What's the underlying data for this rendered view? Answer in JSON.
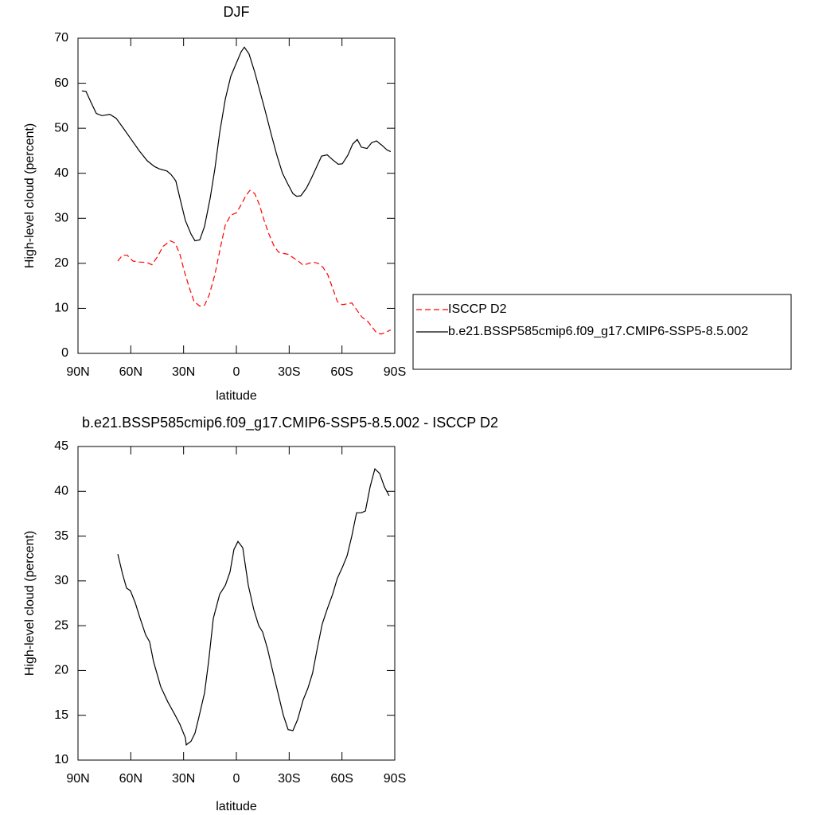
{
  "chart_data": [
    {
      "type": "line",
      "title": "DJF",
      "xlabel": "latitude",
      "ylabel": "High-level cloud (percent)",
      "xlim": [
        90,
        -90
      ],
      "xticks": [
        {
          "value": 90,
          "label": "90N"
        },
        {
          "value": 60,
          "label": "60N"
        },
        {
          "value": 30,
          "label": "30N"
        },
        0,
        {
          "value": -30,
          "label": "30S"
        },
        {
          "value": -60,
          "label": "60S"
        },
        {
          "value": -90,
          "label": "90S"
        }
      ],
      "ylim": [
        0,
        70
      ],
      "yticks": [
        0,
        10,
        20,
        30,
        40,
        50,
        60,
        70
      ],
      "legend": "right",
      "series": [
        {
          "name": "ISCCP D2",
          "color": "#ff0000",
          "dash": true,
          "x": [
            67.4,
            64.7,
            62,
            58.8,
            55.2,
            51.1,
            48,
            44.8,
            41.6,
            37.5,
            34.8,
            32.1,
            29.4,
            26.7,
            24,
            20.8,
            18.1,
            15.4,
            12.2,
            9.1,
            6.3,
            3.2,
            0,
            -2.7,
            -5.4,
            -7.7,
            -10.4,
            -13.1,
            -15.8,
            -18.5,
            -21.2,
            -23.9,
            -26.7,
            -29.4,
            -32.1,
            -35.2,
            -37.9,
            -40.6,
            -43.3,
            -46.5,
            -49.2,
            -51.9,
            -54.7,
            -57.4,
            -60.2,
            -62.9,
            -65.6,
            -68.7,
            -71.4,
            -74.2,
            -76.9,
            -79.6,
            -82.3,
            -85,
            -87.7
          ],
          "values": [
            20.5,
            21.8,
            21.8,
            20.5,
            20.3,
            20.2,
            19.7,
            21.5,
            23.8,
            25,
            24.5,
            22,
            18,
            14.5,
            11.5,
            10.5,
            10.7,
            13,
            17.5,
            23.5,
            28.5,
            30.7,
            31.2,
            33,
            35,
            36.2,
            35.5,
            33,
            29.5,
            26.5,
            24,
            22.5,
            22.2,
            22,
            21.3,
            20.5,
            19.6,
            19.9,
            20.3,
            20,
            19.1,
            17.5,
            14.5,
            11.5,
            10.8,
            11,
            11.2,
            9.5,
            8,
            7.3,
            6,
            4.6,
            4.3,
            4.7,
            5.2
          ]
        },
        {
          "name": "b.e21.BSSP585cmip6.f09_g17.CMIP6-SSP5-8.5.002",
          "color": "#000000",
          "dash": false,
          "x": [
            87.8,
            85.5,
            82.3,
            79.6,
            76.4,
            71.9,
            68.3,
            64.2,
            59.7,
            55.2,
            50.7,
            46.6,
            43.9,
            39.4,
            37.1,
            34.4,
            32.1,
            29,
            25.8,
            23.5,
            20.8,
            18.1,
            14.9,
            12.2,
            9.5,
            6.3,
            3.2,
            0,
            -2.7,
            -4.5,
            -7.2,
            -10.4,
            -13.5,
            -16.3,
            -19.9,
            -23,
            -26.2,
            -29.4,
            -32.1,
            -34.3,
            -36.6,
            -39.8,
            -42.5,
            -45.7,
            -48.4,
            -51.6,
            -54.7,
            -57.9,
            -60.2,
            -63.3,
            -66.1,
            -68.7,
            -71,
            -74.2,
            -76.9,
            -79.6,
            -82.7,
            -85.5,
            -87.7
          ],
          "values": [
            58.3,
            58.2,
            55.5,
            53.3,
            52.8,
            53.1,
            52.2,
            50,
            47.5,
            45,
            42.8,
            41.5,
            41,
            40.5,
            39.7,
            38.3,
            34.5,
            29.5,
            26.5,
            25,
            25.2,
            28.2,
            34.5,
            41,
            49,
            56.5,
            61.5,
            64.5,
            67,
            68,
            66.5,
            62.5,
            58,
            54,
            48.5,
            44,
            40,
            37.5,
            35.5,
            34.9,
            35,
            36.7,
            38.8,
            41.5,
            43.8,
            44.1,
            43,
            42,
            42.1,
            44,
            46.5,
            47.5,
            45.8,
            45.5,
            46.8,
            47.2,
            46.2,
            45.2,
            44.8
          ]
        }
      ]
    },
    {
      "type": "line",
      "title": "b.e21.BSSP585cmip6.f09_g17.CMIP6-SSP5-8.5.002 - ISCCP D2",
      "xlabel": "latitude",
      "ylabel": "High-level cloud (percent)",
      "xlim": [
        90,
        -90
      ],
      "xticks": [
        {
          "value": 90,
          "label": "90N"
        },
        {
          "value": 60,
          "label": "60N"
        },
        {
          "value": 30,
          "label": "30N"
        },
        0,
        {
          "value": -30,
          "label": "30S"
        },
        {
          "value": -60,
          "label": "60S"
        },
        {
          "value": -90,
          "label": "90S"
        }
      ],
      "ylim": [
        10,
        45
      ],
      "yticks": [
        10,
        15,
        20,
        25,
        30,
        35,
        40,
        45
      ],
      "series": [
        {
          "color": "#000000",
          "dash": false,
          "x": [
            67.4,
            64.7,
            62.4,
            60.2,
            57.4,
            54.7,
            51.6,
            49.3,
            47.1,
            43,
            39,
            34.8,
            32.1,
            29,
            28.5,
            25.8,
            23.5,
            21.3,
            18.1,
            15.8,
            13.1,
            9.5,
            6.3,
            3.6,
            1.4,
            -0.9,
            -3.6,
            -6.8,
            -9.9,
            -12.7,
            -14.9,
            -17.6,
            -20.8,
            -23.9,
            -26.7,
            -29.4,
            -32.1,
            -34.8,
            -37.9,
            -40.6,
            -43.3,
            -46,
            -48.8,
            -51.5,
            -54.7,
            -57.4,
            -60.2,
            -62.9,
            -65.6,
            -68.3,
            -71,
            -73.3,
            -76,
            -78.7,
            -81.4,
            -84.1,
            -86.8
          ],
          "values": [
            33,
            30.8,
            29.2,
            28.9,
            27.5,
            25.8,
            24,
            23.2,
            21,
            18.2,
            16.5,
            15,
            14,
            12.5,
            11.7,
            12.1,
            13,
            14.8,
            17.5,
            21,
            25.8,
            28.5,
            29.5,
            31,
            33.5,
            34.4,
            33.7,
            29.5,
            26.8,
            25,
            24.3,
            22.5,
            19.8,
            17.3,
            15,
            13.4,
            13.3,
            14.5,
            16.7,
            18,
            19.7,
            22.5,
            25.2,
            26.8,
            28.5,
            30.3,
            31.5,
            32.8,
            35,
            37.6,
            37.6,
            37.8,
            40.5,
            42.5,
            42,
            40.5,
            39.5
          ]
        }
      ]
    }
  ]
}
